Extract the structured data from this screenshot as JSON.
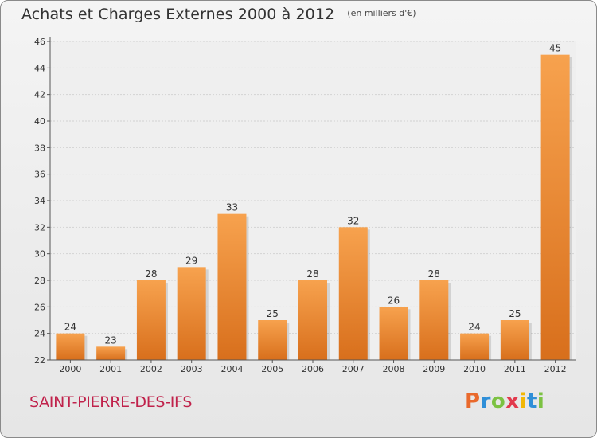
{
  "header": {
    "title": "Achats et Charges Externes 2000 à 2012",
    "unit": "(en milliers d'€)"
  },
  "footer": {
    "city": "SAINT-PIERRE-DES-IFS",
    "logo_letters": [
      "P",
      "r",
      "o",
      "x",
      "i",
      "t",
      "i"
    ],
    "logo_colors": [
      "#e9692c",
      "#2f8fd8",
      "#7cc242",
      "#e23a4d",
      "#f2b705",
      "#2f8fd8",
      "#7cc242"
    ]
  },
  "colors": {
    "bar_top": "#f7a24e",
    "bar_bottom": "#d86f1c",
    "title": "#333333",
    "city": "#c0224b"
  },
  "chart_data": {
    "type": "bar",
    "categories": [
      "2000",
      "2001",
      "2002",
      "2003",
      "2004",
      "2005",
      "2006",
      "2007",
      "2008",
      "2009",
      "2010",
      "2011",
      "2012"
    ],
    "values": [
      24,
      23,
      28,
      29,
      33,
      25,
      28,
      32,
      26,
      28,
      24,
      25,
      45
    ],
    "ylim": [
      22,
      46
    ],
    "yticks": [
      22,
      24,
      26,
      28,
      30,
      32,
      34,
      36,
      38,
      40,
      42,
      44,
      46
    ],
    "grid": true
  }
}
